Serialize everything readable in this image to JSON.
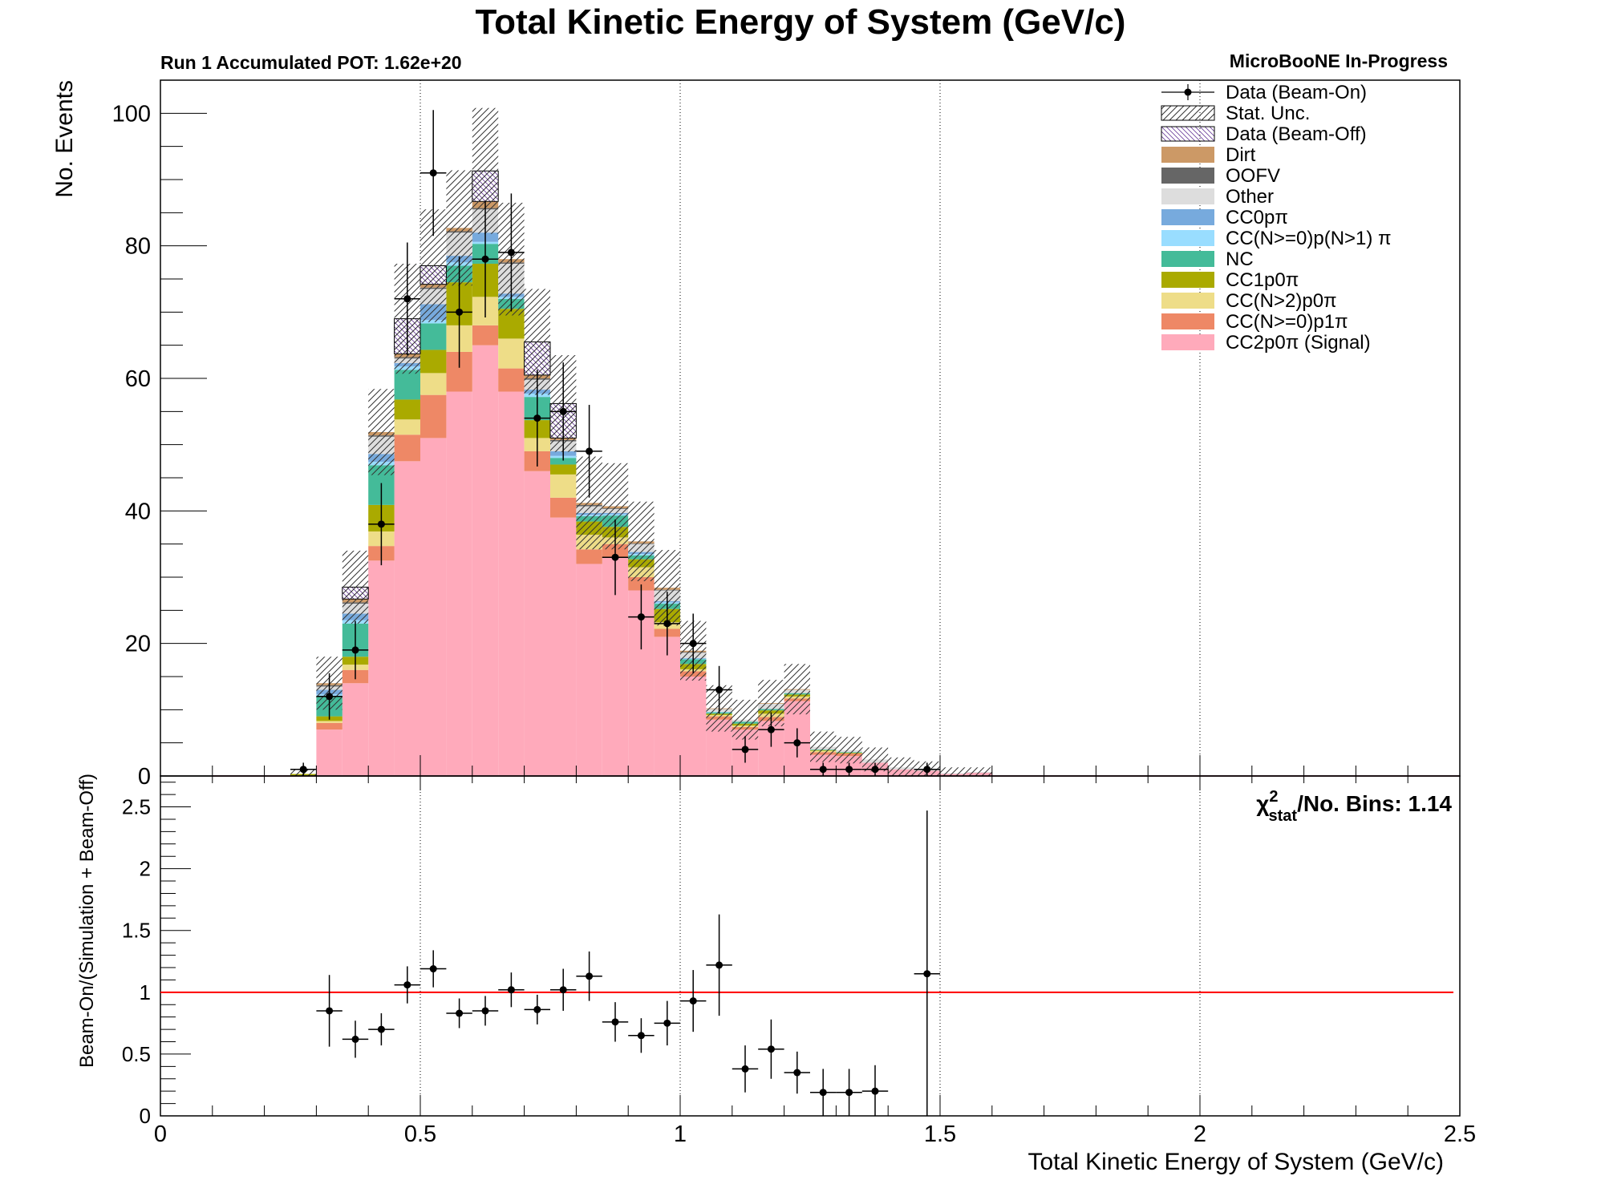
{
  "chart_data": [
    {
      "type": "bar",
      "stacked": true,
      "title": "Total Kinetic Energy of System (GeV/c)",
      "subtitle_left": "Run 1 Accumulated POT: 1.62e+20",
      "subtitle_right": "MicroBooNE In-Progress",
      "ylabel": "No. Events",
      "xlim": [
        0,
        2.5
      ],
      "ylim": [
        0,
        105
      ],
      "x_ticks": [
        "0",
        "0.5",
        "1",
        "1.5",
        "2",
        "2.5"
      ],
      "y_ticks": [
        "0",
        "20",
        "40",
        "60",
        "80",
        "100"
      ],
      "grid": "vertical dotted",
      "legend_position": "top-right",
      "bin_width": 0.05,
      "bin_lo": [
        0.25,
        0.3,
        0.35,
        0.4,
        0.45,
        0.5,
        0.55,
        0.6,
        0.65,
        0.7,
        0.75,
        0.8,
        0.85,
        0.9,
        0.95,
        1.0,
        1.05,
        1.1,
        1.15,
        1.2,
        1.25,
        1.3,
        1.35,
        1.4,
        1.45,
        1.5,
        1.55
      ],
      "series": [
        {
          "name": "CC2p0π (Signal)",
          "color": "#ffaabb",
          "values": [
            0,
            7,
            14,
            32.5,
            47.5,
            51,
            58,
            65,
            58,
            46,
            39,
            32,
            33,
            28,
            21,
            15,
            8.5,
            7,
            8.3,
            11.3,
            3.2,
            3,
            2,
            1,
            0.8,
            0.3,
            0.5
          ]
        },
        {
          "name": "CC(N>=0)p1π",
          "color": "#ee8866",
          "values": [
            0,
            1,
            2,
            2.2,
            4,
            6.5,
            6,
            3,
            3.5,
            3,
            3,
            2.2,
            2,
            2,
            1.2,
            0.8,
            0.5,
            0.4,
            0.6,
            0.4,
            0.4,
            0.4,
            0,
            0,
            0,
            0,
            0
          ]
        },
        {
          "name": "CC(N>2)p0π",
          "color": "#eedd88",
          "values": [
            0,
            0.3,
            0.8,
            2.2,
            2.3,
            3.3,
            4,
            4.3,
            4.5,
            2,
            3.5,
            2.2,
            1,
            1.5,
            1,
            0.3,
            0.2,
            0.2,
            0.5,
            0.3,
            0.2,
            0,
            0,
            0,
            0,
            0,
            0
          ]
        },
        {
          "name": "CC1p0π",
          "color": "#aaaa00",
          "values": [
            0.3,
            0.7,
            1.2,
            4,
            3,
            3.5,
            6.5,
            5,
            4.5,
            2.7,
            1.5,
            2,
            1.6,
            1.2,
            2,
            0.8,
            0.2,
            0.3,
            0.5,
            0.3,
            0.1,
            0.1,
            0,
            0,
            0,
            0,
            0
          ]
        },
        {
          "name": "NC",
          "color": "#44bb99",
          "values": [
            0,
            3,
            5,
            6,
            4.5,
            4,
            2.5,
            3,
            1.5,
            3.5,
            1,
            0.8,
            1.7,
            0.6,
            0.8,
            0.7,
            0.2,
            0.3,
            0.2,
            0.2,
            0.1,
            0.1,
            0,
            0,
            0,
            0,
            0
          ]
        },
        {
          "name": "CC(N>=0)p(N>1) π",
          "color": "#99ddff",
          "values": [
            0,
            0.3,
            0.5,
            0.5,
            0.5,
            0.5,
            0.5,
            0.3,
            0.3,
            0.5,
            0.3,
            0.2,
            0.2,
            0.2,
            0.2,
            0.1,
            0.1,
            0,
            0,
            0,
            0,
            0,
            0,
            0,
            0,
            0,
            0
          ]
        },
        {
          "name": "CC0pπ",
          "color": "#77aadd",
          "values": [
            0,
            0.7,
            1,
            1.2,
            0.5,
            2.4,
            1,
            1.4,
            0.5,
            0.6,
            0.7,
            0.3,
            0.2,
            0.3,
            0.2,
            0.1,
            0,
            0,
            0,
            0,
            0,
            0,
            0,
            0,
            0,
            0,
            0
          ]
        },
        {
          "name": "Other",
          "color": "#dddddd",
          "values": [
            0,
            0.5,
            1.5,
            2.6,
            0.7,
            2.3,
            3.5,
            3.5,
            4.5,
            1.5,
            1.5,
            1,
            0.6,
            1.2,
            1.6,
            0.8,
            0.4,
            0.3,
            0.8,
            0.5,
            0.4,
            0.3,
            0.5,
            0.3,
            0.2,
            0.1,
            0.1
          ]
        },
        {
          "name": "OOFV",
          "color": "#666666",
          "values": [
            0,
            0.2,
            0.2,
            0.2,
            0.2,
            0.2,
            0.2,
            0.2,
            0.2,
            0.2,
            0.2,
            0.2,
            0.1,
            0.1,
            0.1,
            0.1,
            0,
            0,
            0,
            0,
            0,
            0,
            0,
            0,
            0,
            0,
            0
          ]
        },
        {
          "name": "Dirt",
          "color": "#cc9966",
          "values": [
            0,
            0.3,
            0.5,
            0.5,
            0.5,
            0.5,
            0.5,
            1,
            0.5,
            0.5,
            0.3,
            0.3,
            0.3,
            0.3,
            0.3,
            0.2,
            0.1,
            0,
            0.1,
            0.1,
            0,
            0,
            0,
            0,
            0,
            0,
            0
          ]
        }
      ],
      "beam_off": {
        "name": "Data (Beam-Off)",
        "values": [
          0,
          0,
          1.8,
          0,
          5.3,
          2.8,
          0,
          4.6,
          0,
          5,
          5.2,
          0,
          0,
          0,
          0,
          0,
          0,
          0,
          0,
          0,
          0,
          0,
          0,
          0,
          0,
          0,
          0
        ]
      },
      "stat_unc": {
        "name": "Stat. Unc.",
        "values": [
          0.7,
          4,
          5.5,
          6.5,
          8.3,
          8.5,
          8.7,
          9.5,
          8.5,
          8,
          7.3,
          7,
          6.5,
          6,
          5.7,
          4.5,
          3.5,
          3,
          3.5,
          3.8,
          2.3,
          2,
          1.8,
          1.5,
          1.2,
          0.9,
          0.7
        ]
      },
      "data": {
        "name": "Data (Beam-On)",
        "x": [
          0.275,
          0.325,
          0.375,
          0.425,
          0.475,
          0.525,
          0.575,
          0.625,
          0.675,
          0.725,
          0.775,
          0.825,
          0.875,
          0.925,
          0.975,
          1.025,
          1.075,
          1.125,
          1.175,
          1.225,
          1.275,
          1.325,
          1.375,
          1.475
        ],
        "y": [
          1,
          12,
          19,
          38,
          72,
          91,
          70,
          78,
          79,
          54,
          55,
          49,
          33,
          24,
          23,
          20,
          13,
          4,
          7,
          5,
          1,
          1,
          1,
          1
        ],
        "yerr": [
          1,
          3.5,
          4.4,
          6.2,
          8.5,
          9.5,
          8.4,
          8.8,
          8.9,
          7.3,
          7.4,
          7,
          5.7,
          4.9,
          4.8,
          4.5,
          3.6,
          2,
          2.6,
          2.2,
          1,
          1,
          1,
          1
        ]
      }
    },
    {
      "type": "scatter",
      "xlabel": "Total Kinetic Energy of System (GeV/c)",
      "ylabel": "Beam-On/(Simulation + Beam-Off)",
      "xlim": [
        0,
        2.5
      ],
      "ylim": [
        0,
        2.75
      ],
      "x_ticks": [
        "0",
        "0.5",
        "1",
        "1.5",
        "2",
        "2.5"
      ],
      "y_ticks": [
        "0",
        "0.5",
        "1",
        "1.5",
        "2",
        "2.5"
      ],
      "reference_line": 1,
      "reference_color": "#ff0000",
      "annotation": {
        "chi": "χ",
        "sup": "2",
        "sub": "stat",
        "rest": "/No. Bins: 1.14"
      },
      "x": [
        0.325,
        0.375,
        0.425,
        0.475,
        0.525,
        0.575,
        0.625,
        0.675,
        0.725,
        0.775,
        0.825,
        0.875,
        0.925,
        0.975,
        1.025,
        1.075,
        1.125,
        1.175,
        1.225,
        1.275,
        1.325,
        1.375,
        1.475
      ],
      "y": [
        0.85,
        0.62,
        0.7,
        1.06,
        1.19,
        0.83,
        0.85,
        1.02,
        0.86,
        1.02,
        1.13,
        0.76,
        0.65,
        0.75,
        0.93,
        1.22,
        0.38,
        0.54,
        0.35,
        0.19,
        0.19,
        0.2,
        1.15
      ],
      "yerr": [
        0.29,
        0.15,
        0.13,
        0.15,
        0.15,
        0.12,
        0.12,
        0.14,
        0.12,
        0.17,
        0.2,
        0.16,
        0.14,
        0.18,
        0.25,
        0.41,
        0.19,
        0.24,
        0.17,
        0.19,
        0.19,
        0.21,
        1.32
      ]
    }
  ]
}
